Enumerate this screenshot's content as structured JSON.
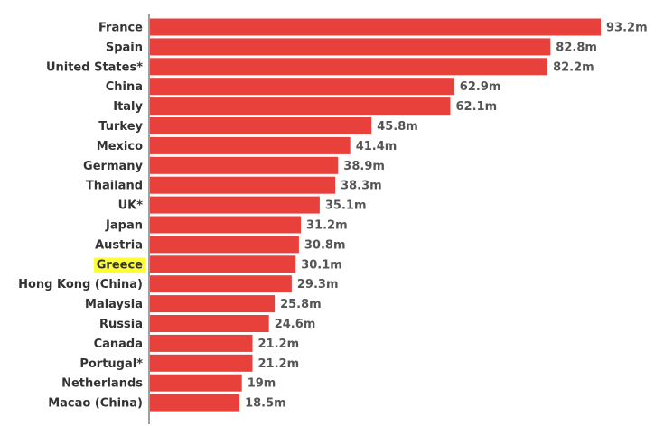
{
  "chart_data": {
    "type": "bar",
    "orientation": "horizontal",
    "unit_suffix": "m",
    "categories": [
      "France",
      "Spain",
      "United States*",
      "China",
      "Italy",
      "Turkey",
      "Mexico",
      "Germany",
      "Thailand",
      "UK*",
      "Japan",
      "Austria",
      "Greece",
      "Hong Kong (China)",
      "Malaysia",
      "Russia",
      "Canada",
      "Portugal*",
      "Netherlands",
      "Macao (China)"
    ],
    "values": [
      93.2,
      82.8,
      82.2,
      62.9,
      62.1,
      45.8,
      41.4,
      38.9,
      38.3,
      35.1,
      31.2,
      30.8,
      30.1,
      29.3,
      25.8,
      24.6,
      21.2,
      21.2,
      19,
      18.5
    ],
    "value_labels": [
      "93.2m",
      "82.8m",
      "82.2m",
      "62.9m",
      "62.1m",
      "45.8m",
      "41.4m",
      "38.9m",
      "38.3m",
      "35.1m",
      "31.2m",
      "30.8m",
      "30.1m",
      "29.3m",
      "25.8m",
      "24.6m",
      "21.2m",
      "21.2m",
      "19m",
      "18.5m"
    ],
    "highlighted_category": "Greece",
    "xlim": [
      0,
      93.2
    ],
    "grid": false,
    "legend": "none",
    "title": "",
    "xlabel": "",
    "ylabel": ""
  },
  "colors": {
    "bar": "#e8413c",
    "highlight": "#ffff33",
    "axis": "#7f7f7f"
  }
}
